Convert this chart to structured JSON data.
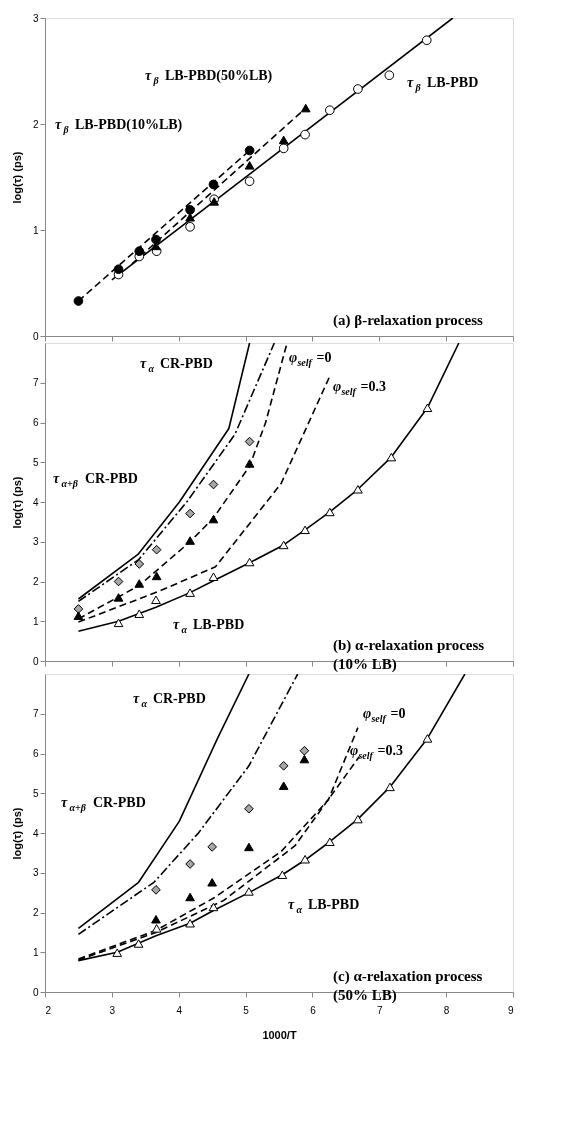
{
  "chart_data": [
    {
      "type": "scatter",
      "xlim": [
        2,
        9
      ],
      "ylim": [
        0,
        3
      ],
      "xticks": [
        2,
        3,
        4,
        5,
        6,
        7,
        8,
        9
      ],
      "yticks": [
        0,
        1,
        2,
        3
      ],
      "ylabel": "log(τ) (ps)",
      "tick_labels": "y",
      "series": [
        {
          "type": "line",
          "color": "#000000",
          "line_style": "solid",
          "x": [
            3.0,
            8.1
          ],
          "values": [
            0.53,
            3.0
          ]
        },
        {
          "type": "line",
          "color": "#000000",
          "line_style": "dashed",
          "x": [
            2.5,
            5.06
          ],
          "values": [
            0.33,
            1.75
          ]
        },
        {
          "type": "line",
          "color": "#000000",
          "line_style": "dashed",
          "x": [
            3.3,
            5.9
          ],
          "values": [
            0.68,
            2.15
          ]
        },
        {
          "color": "#ffffff",
          "marker": "circle",
          "x": [
            3.1,
            3.41,
            3.67,
            4.17,
            4.53,
            5.06,
            5.57,
            5.89,
            6.26,
            6.68,
            7.15,
            7.71
          ],
          "values": [
            0.58,
            0.75,
            0.8,
            1.03,
            1.29,
            1.46,
            1.77,
            1.9,
            2.13,
            2.33,
            2.46,
            2.79
          ]
        },
        {
          "color": "#000000",
          "marker": "circle",
          "x": [
            2.5,
            3.1,
            3.41,
            3.66,
            4.17,
            4.52,
            5.06
          ],
          "values": [
            0.33,
            0.63,
            0.8,
            0.91,
            1.19,
            1.43,
            1.75
          ]
        },
        {
          "color": "#000000",
          "marker": "triangle",
          "x": [
            3.66,
            4.17,
            4.53,
            5.06,
            5.57,
            5.9
          ],
          "values": [
            0.85,
            1.12,
            1.27,
            1.61,
            1.85,
            2.15
          ]
        }
      ],
      "annotations": [
        "τ$_{β}$ LB-PBD(50%LB)",
        "τ$_{β}$ LB-PBD(10%LB)",
        "τ$_{β}$ LB-PBD",
        "(a) β-relaxation process"
      ]
    },
    {
      "type": "scatter",
      "xlim": [
        2,
        9
      ],
      "ylim": [
        0,
        8
      ],
      "xticks": [
        2,
        3,
        4,
        5,
        6,
        7,
        8,
        9
      ],
      "yticks": [
        0,
        1,
        2,
        3,
        4,
        5,
        6,
        7
      ],
      "ylabel": "log(τ) (ps)",
      "tick_labels": "y",
      "series": [
        {
          "type": "line",
          "color": "#000000",
          "line_style": "solid",
          "x": [
            2.5,
            3.39,
            4.01,
            4.75,
            5.06
          ],
          "values": [
            1.56,
            2.68,
            4.0,
            5.85,
            8.0
          ]
        },
        {
          "type": "line",
          "color": "#000000",
          "line_style": "dashdot",
          "x": [
            2.5,
            3.4,
            4.12,
            4.84,
            5.43
          ],
          "values": [
            1.5,
            2.55,
            4.0,
            5.7,
            8.0
          ]
        },
        {
          "type": "line",
          "color": "#000000",
          "line_style": "dashed",
          "x": [
            2.5,
            3.41,
            4.17,
            4.52,
            5.06,
            5.3,
            5.62
          ],
          "values": [
            1.06,
            1.9,
            3.0,
            3.6,
            4.9,
            6.0,
            8.0
          ]
        },
        {
          "type": "line",
          "color": "#000000",
          "line_style": "dashed",
          "x": [
            2.5,
            3.7,
            4.55,
            5.53,
            6.25
          ],
          "values": [
            0.98,
            1.75,
            2.37,
            4.46,
            7.13
          ]
        },
        {
          "type": "line",
          "color": "#000000",
          "line_style": "solid",
          "x": [
            2.5,
            3.1,
            3.66,
            4.17,
            4.52,
            5.06,
            5.57,
            5.89,
            6.26,
            6.68,
            7.18,
            7.72,
            8.19
          ],
          "values": [
            0.75,
            1.0,
            1.35,
            1.72,
            2.02,
            2.47,
            2.92,
            3.3,
            3.75,
            4.32,
            5.13,
            6.37,
            8.0
          ]
        },
        {
          "color": "#ffffff",
          "marker": "triangle",
          "x": [
            3.1,
            3.41,
            3.66,
            4.17,
            4.52,
            5.06,
            5.57,
            5.89,
            6.26,
            6.68,
            7.18,
            7.72
          ],
          "values": [
            0.96,
            1.19,
            1.54,
            1.72,
            2.12,
            2.49,
            2.92,
            3.3,
            3.75,
            4.32,
            5.13,
            6.37
          ]
        },
        {
          "color": "#a6a6a6",
          "marker": "diamond",
          "x": [
            2.5,
            3.1,
            3.41,
            3.67,
            4.17,
            4.52,
            5.06
          ],
          "values": [
            1.31,
            2.0,
            2.44,
            2.8,
            3.71,
            4.44,
            5.52
          ]
        },
        {
          "color": "#000000",
          "marker": "triangle",
          "x": [
            2.5,
            3.1,
            3.41,
            3.67,
            4.17,
            4.52,
            5.06
          ],
          "values": [
            1.14,
            1.6,
            1.95,
            2.14,
            3.03,
            3.57,
            4.97
          ]
        }
      ],
      "annotations": [
        "τ$_{α}$ CR-PBD",
        "φ$_{self}$=0",
        "φ$_{self}$=0.3",
        "τ$_{α+β}$ CR-PBD",
        "τ$_{α}$ LB-PBD",
        "(b) α-relaxation process\n(10% LB)"
      ]
    },
    {
      "type": "scatter",
      "xlim": [
        2,
        9
      ],
      "ylim": [
        0,
        8
      ],
      "xticks": [
        2,
        3,
        4,
        5,
        6,
        7,
        8,
        9
      ],
      "yticks": [
        0,
        1,
        2,
        3,
        4,
        5,
        6,
        7
      ],
      "ylabel": "log(τ) (ps)",
      "xlabel": "1000/T",
      "series": [
        {
          "type": "line",
          "color": "#000000",
          "line_style": "solid",
          "x": [
            2.5,
            3.4,
            4.01,
            4.58,
            5.05
          ],
          "values": [
            1.6,
            2.76,
            4.3,
            6.38,
            8.0
          ]
        },
        {
          "type": "line",
          "color": "#000000",
          "line_style": "dashdot",
          "x": [
            2.5,
            3.63,
            4.29,
            5.05,
            5.78
          ],
          "values": [
            1.45,
            2.76,
            3.99,
            5.69,
            8.0
          ]
        },
        {
          "type": "line",
          "color": "#000000",
          "line_style": "dashed",
          "x": [
            2.5,
            3.66,
            4.53,
            5.53,
            6.24,
            6.68
          ],
          "values": [
            0.83,
            1.55,
            2.37,
            3.53,
            4.84,
            6.65
          ]
        },
        {
          "type": "line",
          "color": "#000000",
          "line_style": "dashed",
          "x": [
            2.5,
            3.66,
            4.67,
            5.74,
            6.7
          ],
          "values": [
            0.8,
            1.5,
            2.3,
            3.68,
            5.92
          ]
        },
        {
          "type": "line",
          "color": "#000000",
          "line_style": "solid",
          "x": [
            2.5,
            3.08,
            3.67,
            4.17,
            4.52,
            5.05,
            5.55,
            5.89,
            6.26,
            6.68,
            7.16,
            7.72,
            8.28
          ],
          "values": [
            0.79,
            1.0,
            1.42,
            1.73,
            2.05,
            2.5,
            2.95,
            3.32,
            3.78,
            4.35,
            5.16,
            6.38,
            8.0
          ]
        },
        {
          "color": "#ffffff",
          "marker": "triangle",
          "x": [
            3.08,
            3.4,
            3.67,
            4.17,
            4.52,
            5.05,
            5.55,
            5.89,
            6.26,
            6.68,
            7.16,
            7.72
          ],
          "values": [
            0.99,
            1.22,
            1.6,
            1.73,
            2.14,
            2.53,
            2.95,
            3.34,
            3.78,
            4.35,
            5.16,
            6.38
          ]
        },
        {
          "color": "#a6a6a6",
          "marker": "diamond",
          "x": [
            3.66,
            4.17,
            4.5,
            5.05,
            5.57,
            5.88
          ],
          "values": [
            2.57,
            3.22,
            3.65,
            4.61,
            5.69,
            6.07
          ]
        },
        {
          "color": "#000000",
          "marker": "triangle",
          "x": [
            3.66,
            4.17,
            4.5,
            5.05,
            5.57,
            5.88
          ],
          "values": [
            1.83,
            2.39,
            2.76,
            3.65,
            5.19,
            5.86
          ]
        }
      ],
      "annotations": [
        "τ$_{α}$ CR-PBD",
        "φ$_{self}$=0",
        "φ$_{self}$=0.3",
        "τ$_{α+β}$ CR-PBD",
        "τ$_{α}$ LB-PBD",
        "(c) α-relaxation process\n(50% LB)"
      ]
    }
  ]
}
